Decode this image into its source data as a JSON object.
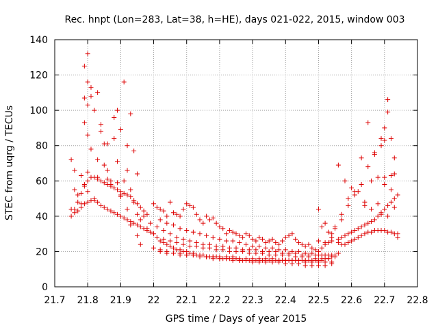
{
  "chart_data": {
    "type": "scatter",
    "title": "Rec. hnpt (Lon=283, Lat=38, h=HE), days 021-022, 2015, window 003",
    "xlabel": "GPS time / Days of year 2015",
    "ylabel": "STEC from uqrg / TECUs",
    "xlim": [
      21.7,
      22.8
    ],
    "ylim": [
      0,
      140
    ],
    "x_ticks": [
      21.7,
      21.8,
      21.9,
      22.0,
      22.1,
      22.2,
      22.3,
      22.4,
      22.5,
      22.6,
      22.7,
      22.8
    ],
    "x_tick_labels": [
      "21.7",
      "21.8",
      "21.9",
      "22",
      "22.1",
      "22.2",
      "22.3",
      "22.4",
      "22.5",
      "22.6",
      "22.7",
      "22.8"
    ],
    "y_ticks": [
      0,
      20,
      40,
      60,
      80,
      100,
      120,
      140
    ],
    "y_tick_labels": [
      "0",
      "20",
      "40",
      "60",
      "80",
      "100",
      "120",
      "140"
    ],
    "grid": true,
    "marker": "plus",
    "color": "#dd0000",
    "series": [
      {
        "x": [
          21.75,
          21.75,
          21.76,
          21.76,
          21.77,
          21.78,
          21.78,
          21.79,
          21.79,
          21.79,
          21.8,
          21.8,
          21.8,
          21.8,
          21.81,
          21.82,
          21.83,
          21.84,
          21.85,
          21.86,
          21.87,
          21.88,
          21.89,
          21.9,
          21.91,
          21.92,
          21.93,
          21.94,
          21.95,
          21.96,
          21.97,
          21.98,
          21.99,
          21.75,
          21.76,
          21.77,
          21.78,
          21.79,
          21.8,
          21.81,
          21.82,
          21.83,
          21.84,
          21.85,
          21.86,
          21.87,
          21.88,
          21.89,
          21.9,
          21.91,
          21.92,
          21.93,
          21.94,
          21.95,
          21.96,
          21.97,
          21.98,
          21.99,
          22.0,
          21.76,
          21.77,
          21.78,
          21.79,
          21.8,
          21.81,
          21.82,
          21.83,
          21.84,
          21.85,
          21.86,
          21.87,
          21.88,
          21.89,
          21.9,
          21.91,
          21.92,
          21.93,
          21.94,
          21.95,
          21.96,
          21.97,
          21.98,
          21.8,
          21.81,
          21.82,
          21.83,
          21.84,
          21.86,
          21.88,
          21.89,
          21.9,
          21.91,
          21.92,
          21.93,
          21.94,
          21.95,
          21.79,
          21.8,
          21.81,
          21.83,
          21.85,
          21.86,
          21.87,
          21.89,
          21.9,
          21.92,
          21.93,
          21.95,
          21.96,
          22.0,
          22.01,
          22.02,
          22.03,
          22.04,
          22.05,
          22.06,
          22.07,
          22.08,
          22.09,
          22.1,
          22.11,
          22.12,
          22.13,
          22.14,
          22.15,
          22.16,
          22.17,
          22.18,
          22.19,
          22.2,
          22.21,
          22.22,
          22.23,
          22.24,
          22.25,
          22.26,
          22.27,
          22.28,
          22.29,
          22.3,
          22.31,
          22.32,
          22.33,
          22.34,
          22.35,
          22.36,
          22.37,
          22.38,
          22.39,
          22.4,
          22.41,
          22.42,
          22.43,
          22.44,
          22.45,
          22.46,
          22.47,
          22.48,
          22.49,
          22.5,
          22.51,
          22.52,
          22.53,
          22.54,
          22.55,
          22.0,
          22.01,
          22.02,
          22.03,
          22.04,
          22.05,
          22.06,
          22.07,
          22.08,
          22.09,
          22.1,
          22.11,
          22.12,
          22.13,
          22.14,
          22.15,
          22.16,
          22.17,
          22.18,
          22.19,
          22.2,
          22.21,
          22.22,
          22.23,
          22.24,
          22.25,
          22.26,
          22.27,
          22.28,
          22.29,
          22.3,
          22.31,
          22.32,
          22.33,
          22.34,
          22.35,
          22.36,
          22.37,
          22.38,
          22.39,
          22.4,
          22.41,
          22.42,
          22.43,
          22.44,
          22.45,
          22.46,
          22.47,
          22.48,
          22.49,
          22.5,
          22.51,
          22.52,
          22.53,
          22.54,
          22.55,
          22.02,
          22.04,
          22.06,
          22.08,
          22.1,
          22.12,
          22.14,
          22.16,
          22.18,
          22.2,
          22.22,
          22.24,
          22.26,
          22.28,
          22.3,
          22.32,
          22.34,
          22.36,
          22.38,
          22.4,
          22.42,
          22.44,
          22.46,
          22.48,
          22.5,
          22.52,
          22.54,
          22.56,
          22.03,
          22.05,
          22.07,
          22.09,
          22.11,
          22.13,
          22.15,
          22.17,
          22.19,
          22.21,
          22.23,
          22.25,
          22.27,
          22.29,
          22.31,
          22.33,
          22.35,
          22.37,
          22.39,
          22.41,
          22.43,
          22.45,
          22.47,
          22.49,
          22.51,
          22.53,
          22.55,
          22.01,
          22.03,
          22.05,
          22.07,
          22.09,
          22.11,
          22.13,
          22.15,
          22.17,
          22.19,
          22.21,
          22.23,
          22.25,
          22.27,
          22.29,
          22.31,
          22.33,
          22.35,
          22.37,
          22.39,
          22.41,
          22.43,
          22.45,
          22.47,
          22.49,
          22.51,
          22.53,
          22.02,
          22.04,
          22.06,
          22.08,
          22.1,
          22.12,
          22.14,
          22.16,
          22.18,
          22.2,
          22.22,
          22.24,
          22.26,
          22.28,
          22.3,
          22.32,
          22.34,
          22.36,
          22.38,
          22.4,
          22.42,
          22.44,
          22.46,
          22.48,
          22.5,
          22.52,
          22.54,
          22.0,
          22.02,
          22.04,
          22.06,
          22.08,
          22.1,
          22.12,
          22.14,
          22.16,
          22.18,
          22.2,
          22.22,
          22.24,
          22.26,
          22.28,
          22.3,
          22.32,
          22.34,
          22.36,
          22.38,
          22.4,
          22.42,
          22.44,
          22.46,
          22.48,
          22.5,
          22.52,
          22.54,
          22.5,
          22.52,
          22.54,
          22.56,
          22.57,
          22.58,
          22.59,
          22.6,
          22.61,
          22.62,
          22.63,
          22.64,
          22.65,
          22.66,
          22.67,
          22.68,
          22.69,
          22.7,
          22.71,
          22.72,
          22.73,
          22.74,
          22.5,
          22.52,
          22.54,
          22.56,
          22.57,
          22.58,
          22.59,
          22.6,
          22.61,
          22.62,
          22.63,
          22.64,
          22.65,
          22.66,
          22.67,
          22.68,
          22.69,
          22.7,
          22.71,
          22.72,
          22.73,
          22.74,
          22.51,
          22.53,
          22.55,
          22.57,
          22.59,
          22.61,
          22.63,
          22.65,
          22.67,
          22.69,
          22.71,
          22.73,
          22.56,
          22.58,
          22.6,
          22.62,
          22.64,
          22.66,
          22.68,
          22.7,
          22.72,
          22.57,
          22.59,
          22.61,
          22.63,
          22.65,
          22.67,
          22.69,
          22.7,
          22.71,
          22.72,
          22.73,
          22.64,
          22.66,
          22.68,
          22.69,
          22.7,
          22.7,
          22.71,
          22.72,
          22.73,
          22.74
        ],
        "y": [
          72,
          44,
          66,
          55,
          52,
          63,
          47,
          58,
          93,
          125,
          103,
          86,
          65,
          54,
          78,
          49,
          62,
          88,
          81,
          66,
          60,
          84,
          71,
          52,
          60,
          66,
          55,
          48,
          41,
          38,
          40,
          33,
          36,
          40,
          42,
          43,
          45,
          47,
          48,
          49,
          50,
          48,
          46,
          45,
          44,
          43,
          42,
          41,
          40,
          39,
          38,
          37,
          36,
          35,
          34,
          33,
          32,
          31,
          30,
          44,
          48,
          53,
          57,
          60,
          62,
          62,
          61,
          60,
          59,
          58,
          57,
          56,
          55,
          54,
          53,
          52,
          51,
          49,
          47,
          45,
          43,
          41,
          132,
          113,
          100,
          110,
          92,
          81,
          96,
          100,
          89,
          116,
          80,
          98,
          77,
          64,
          107,
          116,
          108,
          72,
          69,
          61,
          58,
          59,
          51,
          44,
          35,
          29,
          24,
          30,
          28,
          26,
          25,
          24,
          23,
          22,
          21,
          21,
          20,
          20,
          19,
          19,
          18,
          18,
          18,
          17,
          17,
          17,
          17,
          16,
          16,
          16,
          16,
          16,
          16,
          15,
          15,
          15,
          15,
          15,
          15,
          15,
          15,
          15,
          15,
          15,
          15,
          15,
          15,
          15,
          15,
          15,
          15,
          15,
          15,
          15,
          15,
          15,
          15,
          15,
          15,
          16,
          16,
          17,
          18,
          47,
          45,
          44,
          43,
          40,
          48,
          42,
          41,
          40,
          44,
          47,
          46,
          45,
          41,
          38,
          36,
          40,
          38,
          39,
          36,
          34,
          33,
          30,
          32,
          31,
          30,
          29,
          28,
          30,
          29,
          27,
          26,
          28,
          27,
          25,
          26,
          27,
          25,
          24,
          26,
          28,
          29,
          30,
          27,
          25,
          24,
          23,
          24,
          22,
          21,
          20,
          22,
          24,
          25,
          28,
          34,
          38,
          36,
          35,
          33,
          32,
          31,
          30,
          29,
          28,
          27,
          26,
          26,
          25,
          24,
          23,
          23,
          22,
          22,
          21,
          21,
          20,
          20,
          19,
          19,
          18,
          18,
          18,
          19,
          27,
          26,
          25,
          24,
          23,
          23,
          22,
          22,
          21,
          21,
          20,
          20,
          20,
          19,
          19,
          19,
          18,
          18,
          18,
          18,
          17,
          17,
          17,
          16,
          16,
          16,
          17,
          34,
          32,
          30,
          28,
          27,
          26,
          25,
          24,
          24,
          23,
          23,
          22,
          22,
          21,
          21,
          21,
          20,
          20,
          20,
          19,
          19,
          19,
          18,
          18,
          18,
          18,
          18,
          20,
          19,
          19,
          18,
          18,
          18,
          18,
          17,
          17,
          17,
          17,
          17,
          16,
          16,
          16,
          16,
          16,
          16,
          15,
          15,
          15,
          15,
          14,
          14,
          14,
          14,
          14,
          22,
          21,
          20,
          19,
          19,
          18,
          18,
          17,
          17,
          16,
          16,
          16,
          15,
          15,
          15,
          14,
          14,
          14,
          14,
          14,
          13,
          13,
          13,
          12,
          12,
          12,
          12,
          13,
          26,
          25,
          26,
          27,
          28,
          29,
          30,
          31,
          32,
          33,
          34,
          35,
          36,
          37,
          38,
          40,
          42,
          44,
          46,
          48,
          50,
          52,
          44,
          36,
          30,
          25,
          24,
          24,
          25,
          26,
          27,
          28,
          29,
          30,
          31,
          31,
          32,
          32,
          32,
          32,
          31,
          31,
          30,
          30,
          34,
          31,
          33,
          38,
          46,
          52,
          58,
          68,
          76,
          84,
          99,
          73,
          69,
          60,
          56,
          54,
          48,
          60,
          62,
          58,
          55,
          41,
          50,
          54,
          73,
          93,
          75,
          80,
          90,
          106,
          84,
          64,
          46,
          44,
          47,
          41,
          62,
          83,
          40,
          63,
          45,
          28
        ]
      }
    ]
  }
}
